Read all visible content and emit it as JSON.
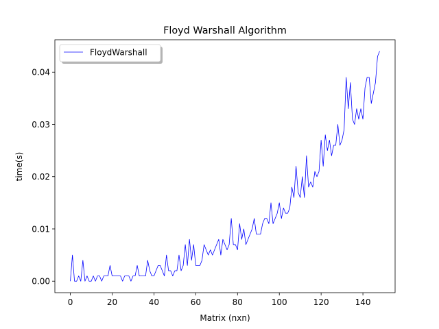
{
  "chart_data": {
    "type": "line",
    "title": "Floyd Warshall Algorithm",
    "xlabel": "Matrix (nxn)",
    "ylabel": "time(s)",
    "xlim": [
      -7.4,
      155.4
    ],
    "ylim": [
      -0.0022,
      0.0462
    ],
    "xticks": [
      0,
      20,
      40,
      60,
      80,
      100,
      120,
      140
    ],
    "yticks": [
      0.0,
      0.01,
      0.02,
      0.03,
      0.04
    ],
    "ytick_labels": [
      "0.00",
      "0.01",
      "0.02",
      "0.03",
      "0.04"
    ],
    "grid": false,
    "legend": {
      "position": "top-left",
      "shadow": true
    },
    "series": [
      {
        "name": "FloydWarshall",
        "color": "#0000ff",
        "x": [
          0,
          1,
          2,
          3,
          4,
          5,
          6,
          7,
          8,
          9,
          10,
          11,
          12,
          13,
          14,
          15,
          16,
          17,
          18,
          19,
          20,
          21,
          22,
          23,
          24,
          25,
          26,
          27,
          28,
          29,
          30,
          31,
          32,
          33,
          34,
          35,
          36,
          37,
          38,
          39,
          40,
          41,
          42,
          43,
          44,
          45,
          46,
          47,
          48,
          49,
          50,
          51,
          52,
          53,
          54,
          55,
          56,
          57,
          58,
          59,
          60,
          61,
          62,
          63,
          64,
          65,
          66,
          67,
          68,
          69,
          70,
          71,
          72,
          73,
          74,
          75,
          76,
          77,
          78,
          79,
          80,
          81,
          82,
          83,
          84,
          85,
          86,
          87,
          88,
          89,
          90,
          91,
          92,
          93,
          94,
          95,
          96,
          97,
          98,
          99,
          100,
          101,
          102,
          103,
          104,
          105,
          106,
          107,
          108,
          109,
          110,
          111,
          112,
          113,
          114,
          115,
          116,
          117,
          118,
          119,
          120,
          121,
          122,
          123,
          124,
          125,
          126,
          127,
          128,
          129,
          130,
          131,
          132,
          133,
          134,
          135,
          136,
          137,
          138,
          139,
          140,
          141,
          142,
          143,
          144,
          145,
          146,
          147,
          148
        ],
        "y": [
          0.0,
          0.005,
          0.0,
          0.0,
          0.001,
          0.0,
          0.004,
          0.0,
          0.001,
          0.0,
          0.0,
          0.001,
          0.0,
          0.001,
          0.001,
          0.0,
          0.001,
          0.001,
          0.001,
          0.003,
          0.001,
          0.001,
          0.001,
          0.001,
          0.001,
          0.0,
          0.001,
          0.001,
          0.001,
          0.0,
          0.001,
          0.001,
          0.003,
          0.001,
          0.001,
          0.001,
          0.001,
          0.004,
          0.002,
          0.001,
          0.001,
          0.002,
          0.003,
          0.003,
          0.002,
          0.001,
          0.005,
          0.002,
          0.002,
          0.001,
          0.002,
          0.002,
          0.005,
          0.002,
          0.003,
          0.007,
          0.003,
          0.008,
          0.004,
          0.007,
          0.003,
          0.003,
          0.003,
          0.004,
          0.007,
          0.006,
          0.005,
          0.006,
          0.005,
          0.006,
          0.007,
          0.008,
          0.005,
          0.008,
          0.007,
          0.006,
          0.007,
          0.012,
          0.007,
          0.007,
          0.006,
          0.011,
          0.008,
          0.01,
          0.007,
          0.008,
          0.009,
          0.01,
          0.012,
          0.009,
          0.009,
          0.009,
          0.011,
          0.012,
          0.012,
          0.011,
          0.015,
          0.011,
          0.012,
          0.013,
          0.015,
          0.012,
          0.014,
          0.013,
          0.013,
          0.014,
          0.018,
          0.016,
          0.022,
          0.017,
          0.016,
          0.02,
          0.016,
          0.024,
          0.018,
          0.019,
          0.018,
          0.021,
          0.02,
          0.021,
          0.027,
          0.022,
          0.028,
          0.025,
          0.027,
          0.024,
          0.026,
          0.026,
          0.03,
          0.026,
          0.027,
          0.029,
          0.039,
          0.033,
          0.038,
          0.031,
          0.03,
          0.033,
          0.031,
          0.033,
          0.031,
          0.037,
          0.039,
          0.039,
          0.034,
          0.036,
          0.038,
          0.043,
          0.044
        ]
      }
    ]
  }
}
